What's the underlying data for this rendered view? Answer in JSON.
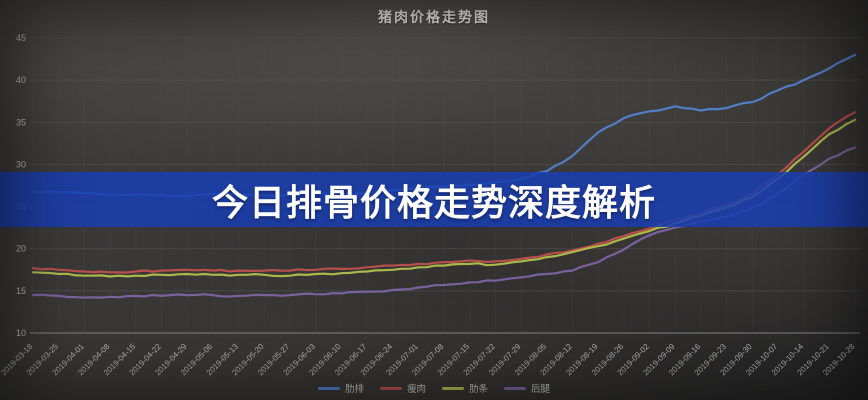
{
  "page": {
    "title": "猪肉价格走势图"
  },
  "banner": {
    "text": "今日排骨价格走势深度解析",
    "bg_color": "#1a3eb2"
  },
  "axis": {
    "tick_color": "#b5b5b5",
    "grid_color": "#5a5a5a",
    "axis_line_color": "#8f8f8f"
  },
  "chart_data": {
    "type": "line",
    "title": "猪肉价格走势图",
    "xlabel": "",
    "ylabel": "",
    "ylim": [
      10,
      45
    ],
    "yticks": [
      10,
      15,
      20,
      25,
      30,
      35,
      40,
      45
    ],
    "grid": true,
    "legend_position": "bottom",
    "x": [
      "2019-03-18",
      "2019-03-25",
      "2019-04-01",
      "2019-04-08",
      "2019-04-15",
      "2019-04-22",
      "2019-04-29",
      "2019-05-06",
      "2019-05-13",
      "2019-05-20",
      "2019-05-27",
      "2019-06-03",
      "2019-06-10",
      "2019-06-17",
      "2019-06-24",
      "2019-07-01",
      "2019-07-08",
      "2019-07-15",
      "2019-07-22",
      "2019-07-29",
      "2019-08-05",
      "2019-08-12",
      "2019-08-19",
      "2019-08-26",
      "2019-09-02",
      "2019-09-09",
      "2019-09-16",
      "2019-09-23",
      "2019-09-30",
      "2019-10-07",
      "2019-10-14",
      "2019-10-21",
      "2019-10-28"
    ],
    "series": [
      {
        "name": "肋排",
        "color": "#5382cc",
        "values": [
          26.8,
          26.7,
          26.6,
          26.3,
          26.4,
          26.4,
          26.3,
          26.5,
          26.4,
          26.4,
          26.4,
          26.5,
          26.5,
          26.6,
          26.9,
          27.2,
          27.4,
          27.6,
          27.9,
          28.3,
          29.2,
          31.0,
          33.8,
          35.5,
          36.3,
          36.9,
          36.4,
          36.7,
          37.4,
          38.8,
          40.0,
          41.4,
          43.0
        ]
      },
      {
        "name": "瘦肉",
        "color": "#c0504d",
        "values": [
          17.7,
          17.5,
          17.3,
          17.2,
          17.3,
          17.4,
          17.5,
          17.4,
          17.4,
          17.4,
          17.4,
          17.5,
          17.6,
          17.8,
          18.0,
          18.2,
          18.4,
          18.6,
          18.5,
          18.8,
          19.3,
          19.8,
          20.6,
          21.5,
          22.4,
          23.4,
          24.2,
          25.2,
          26.5,
          28.8,
          31.5,
          34.3,
          36.2
        ]
      },
      {
        "name": "肋条",
        "color": "#b3bf4d",
        "values": [
          17.2,
          17.0,
          16.8,
          16.7,
          16.8,
          16.9,
          17.0,
          16.9,
          16.9,
          16.9,
          16.8,
          17.0,
          17.1,
          17.3,
          17.5,
          17.8,
          18.0,
          18.2,
          18.1,
          18.5,
          19.0,
          19.6,
          20.3,
          21.2,
          22.1,
          23.0,
          23.9,
          24.9,
          26.1,
          28.3,
          30.9,
          33.6,
          35.3
        ]
      },
      {
        "name": "后腿",
        "color": "#8064a2",
        "values": [
          14.5,
          14.4,
          14.2,
          14.3,
          14.4,
          14.4,
          14.5,
          14.5,
          14.4,
          14.5,
          14.5,
          14.6,
          14.7,
          14.9,
          15.1,
          15.4,
          15.7,
          16.0,
          16.2,
          16.6,
          17.0,
          17.4,
          18.4,
          19.9,
          21.6,
          22.5,
          23.2,
          23.8,
          24.8,
          26.5,
          28.8,
          30.7,
          32.0
        ]
      }
    ]
  }
}
